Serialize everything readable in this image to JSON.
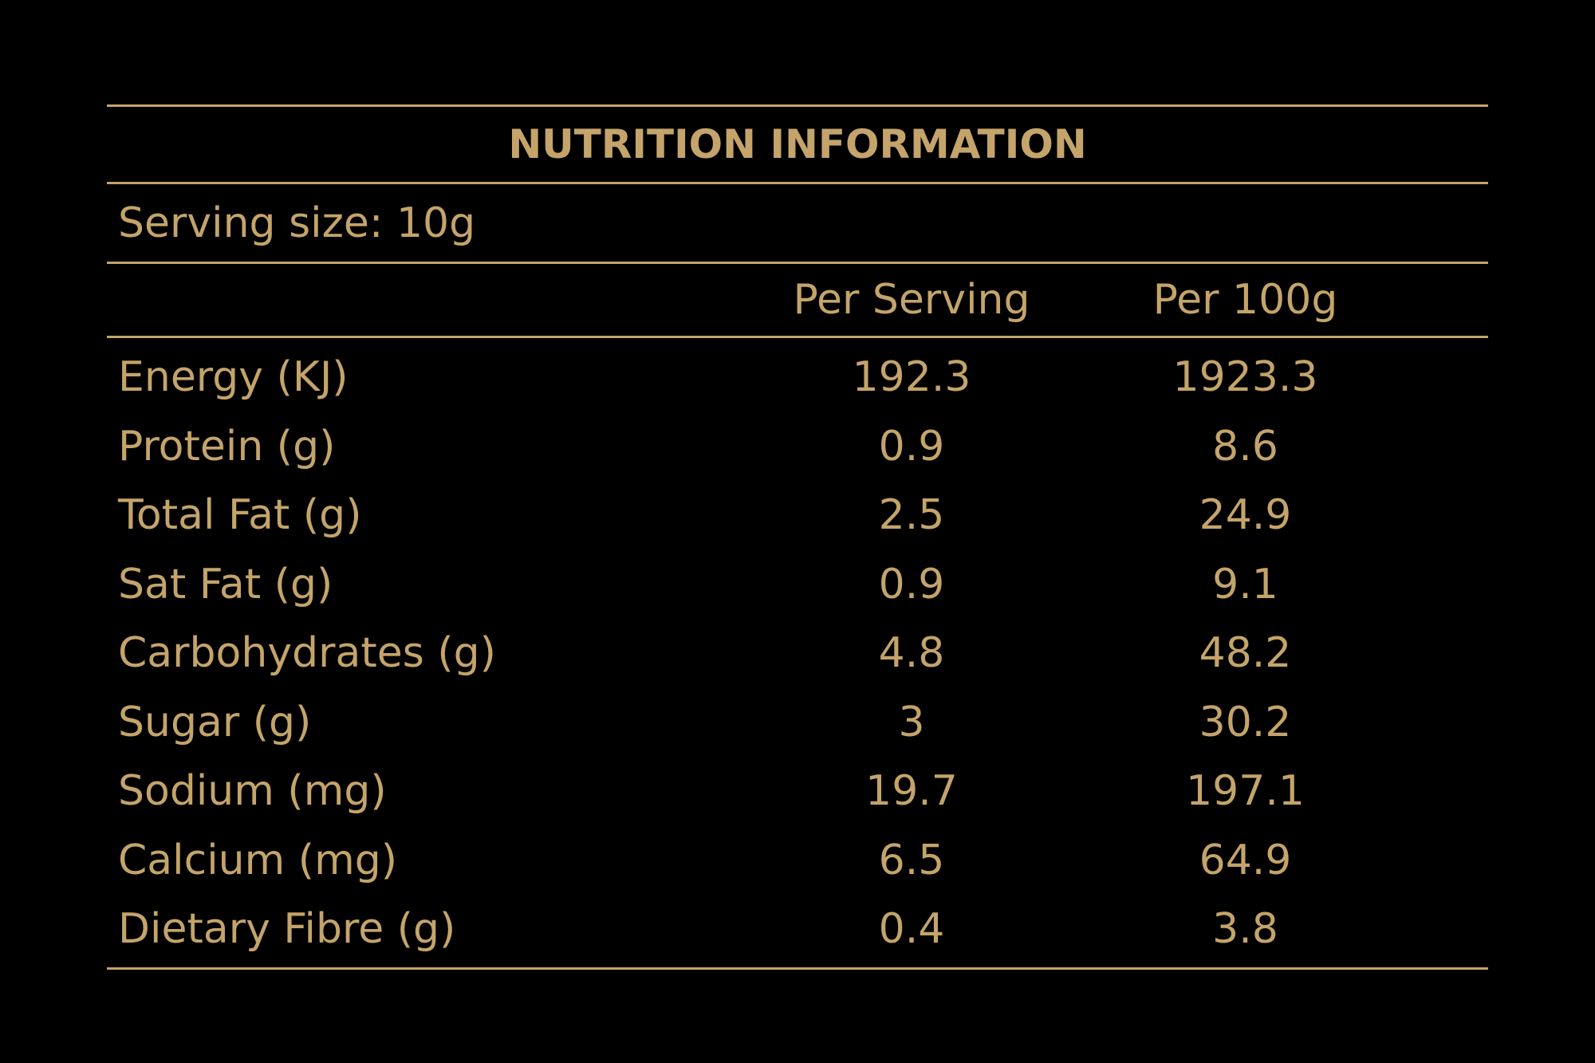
{
  "title": "NUTRITION INFORMATION",
  "serving_size": "Serving size: 10g",
  "columns": {
    "per_serving": "Per Serving",
    "per_100g": "Per 100g"
  },
  "rows": [
    {
      "name": "Energy (KJ)",
      "per_serving": "192.3",
      "per_100g": "1923.3"
    },
    {
      "name": "Protein (g)",
      "per_serving": "0.9",
      "per_100g": "8.6"
    },
    {
      "name": "Total Fat (g)",
      "per_serving": "2.5",
      "per_100g": "24.9"
    },
    {
      "name": "Sat Fat (g)",
      "per_serving": "0.9",
      "per_100g": "9.1"
    },
    {
      "name": "Carbohydrates (g)",
      "per_serving": "4.8",
      "per_100g": "48.2"
    },
    {
      "name": "Sugar (g)",
      "per_serving": "3",
      "per_100g": "30.2"
    },
    {
      "name": "Sodium (mg)",
      "per_serving": "19.7",
      "per_100g": "197.1"
    },
    {
      "name": "Calcium (mg)",
      "per_serving": "6.5",
      "per_100g": "64.9"
    },
    {
      "name": "Dietary Fibre (g)",
      "per_serving": "0.4",
      "per_100g": "3.8"
    }
  ],
  "colors": {
    "background": "#000000",
    "text": "#c4a46a"
  }
}
